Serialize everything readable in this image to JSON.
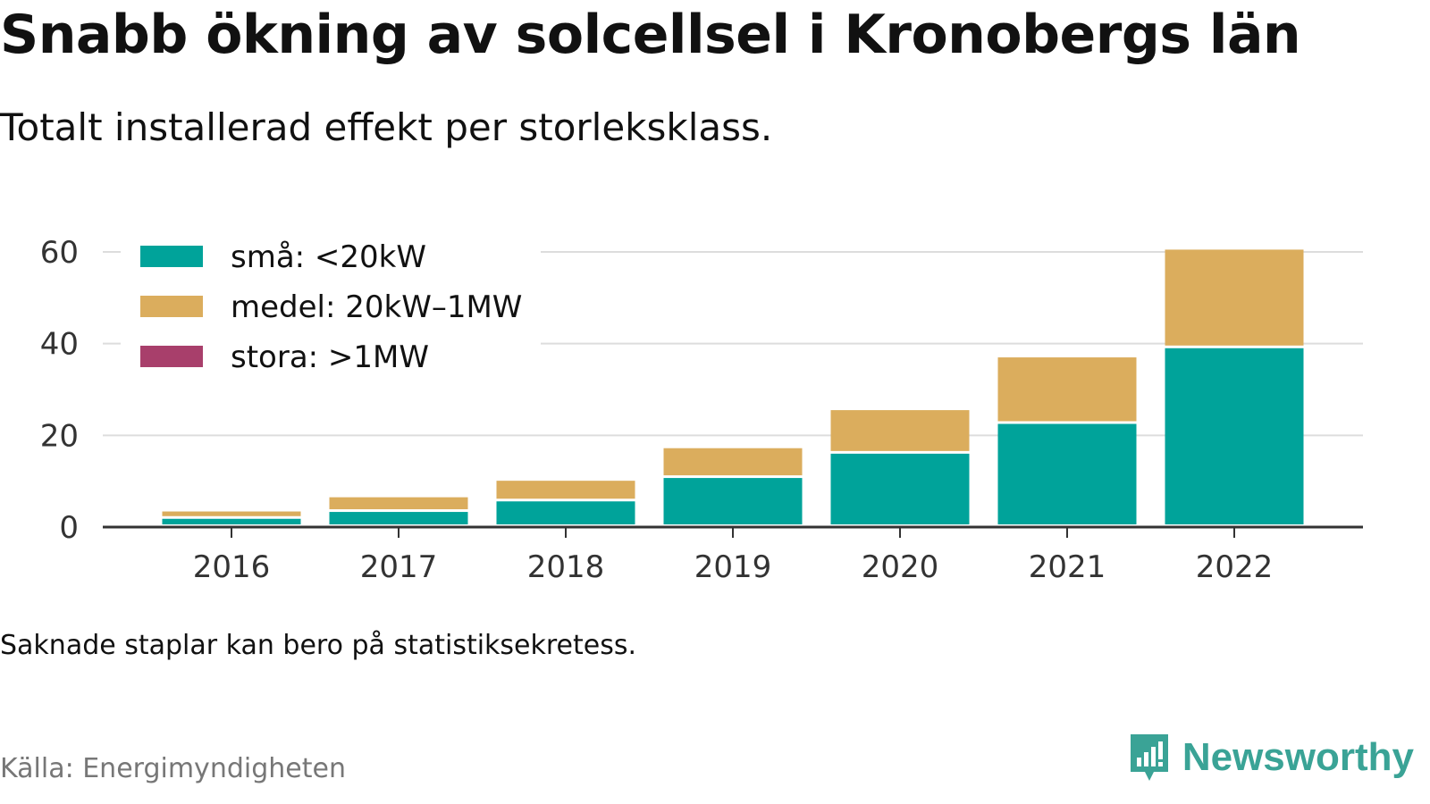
{
  "title": "Snabb ökning av solcellsel i Kronobergs län",
  "subtitle": "Totalt installerad effekt per storleksklass.",
  "note": "Saknade staplar kan bero på statistiksekretess.",
  "source": "Källa: Energimyndigheten",
  "brand": {
    "name": "Newsworthy",
    "icon": "newsworthy-logo-icon",
    "color": "#3aa396"
  },
  "chart_data": {
    "type": "bar",
    "stacked": true,
    "categories": [
      "2016",
      "2017",
      "2018",
      "2019",
      "2020",
      "2021",
      "2022"
    ],
    "series": [
      {
        "name": "små: <20kW",
        "color": "#00a39a",
        "values": [
          1.8,
          3.3,
          5.6,
          10.7,
          16.0,
          22.5,
          39.0
        ]
      },
      {
        "name": "medel: 20kW–1MW",
        "color": "#dbad5d",
        "values": [
          1.6,
          3.2,
          4.5,
          6.5,
          9.5,
          14.5,
          21.5
        ]
      },
      {
        "name": "stora: >1MW",
        "color": "#a83f6b",
        "values": [
          0,
          0,
          0,
          0,
          0,
          0,
          0
        ]
      }
    ],
    "y_ticks": [
      0,
      20,
      40,
      60
    ],
    "ylim": [
      0,
      62
    ],
    "grid": true,
    "legend_position": "top-left"
  }
}
